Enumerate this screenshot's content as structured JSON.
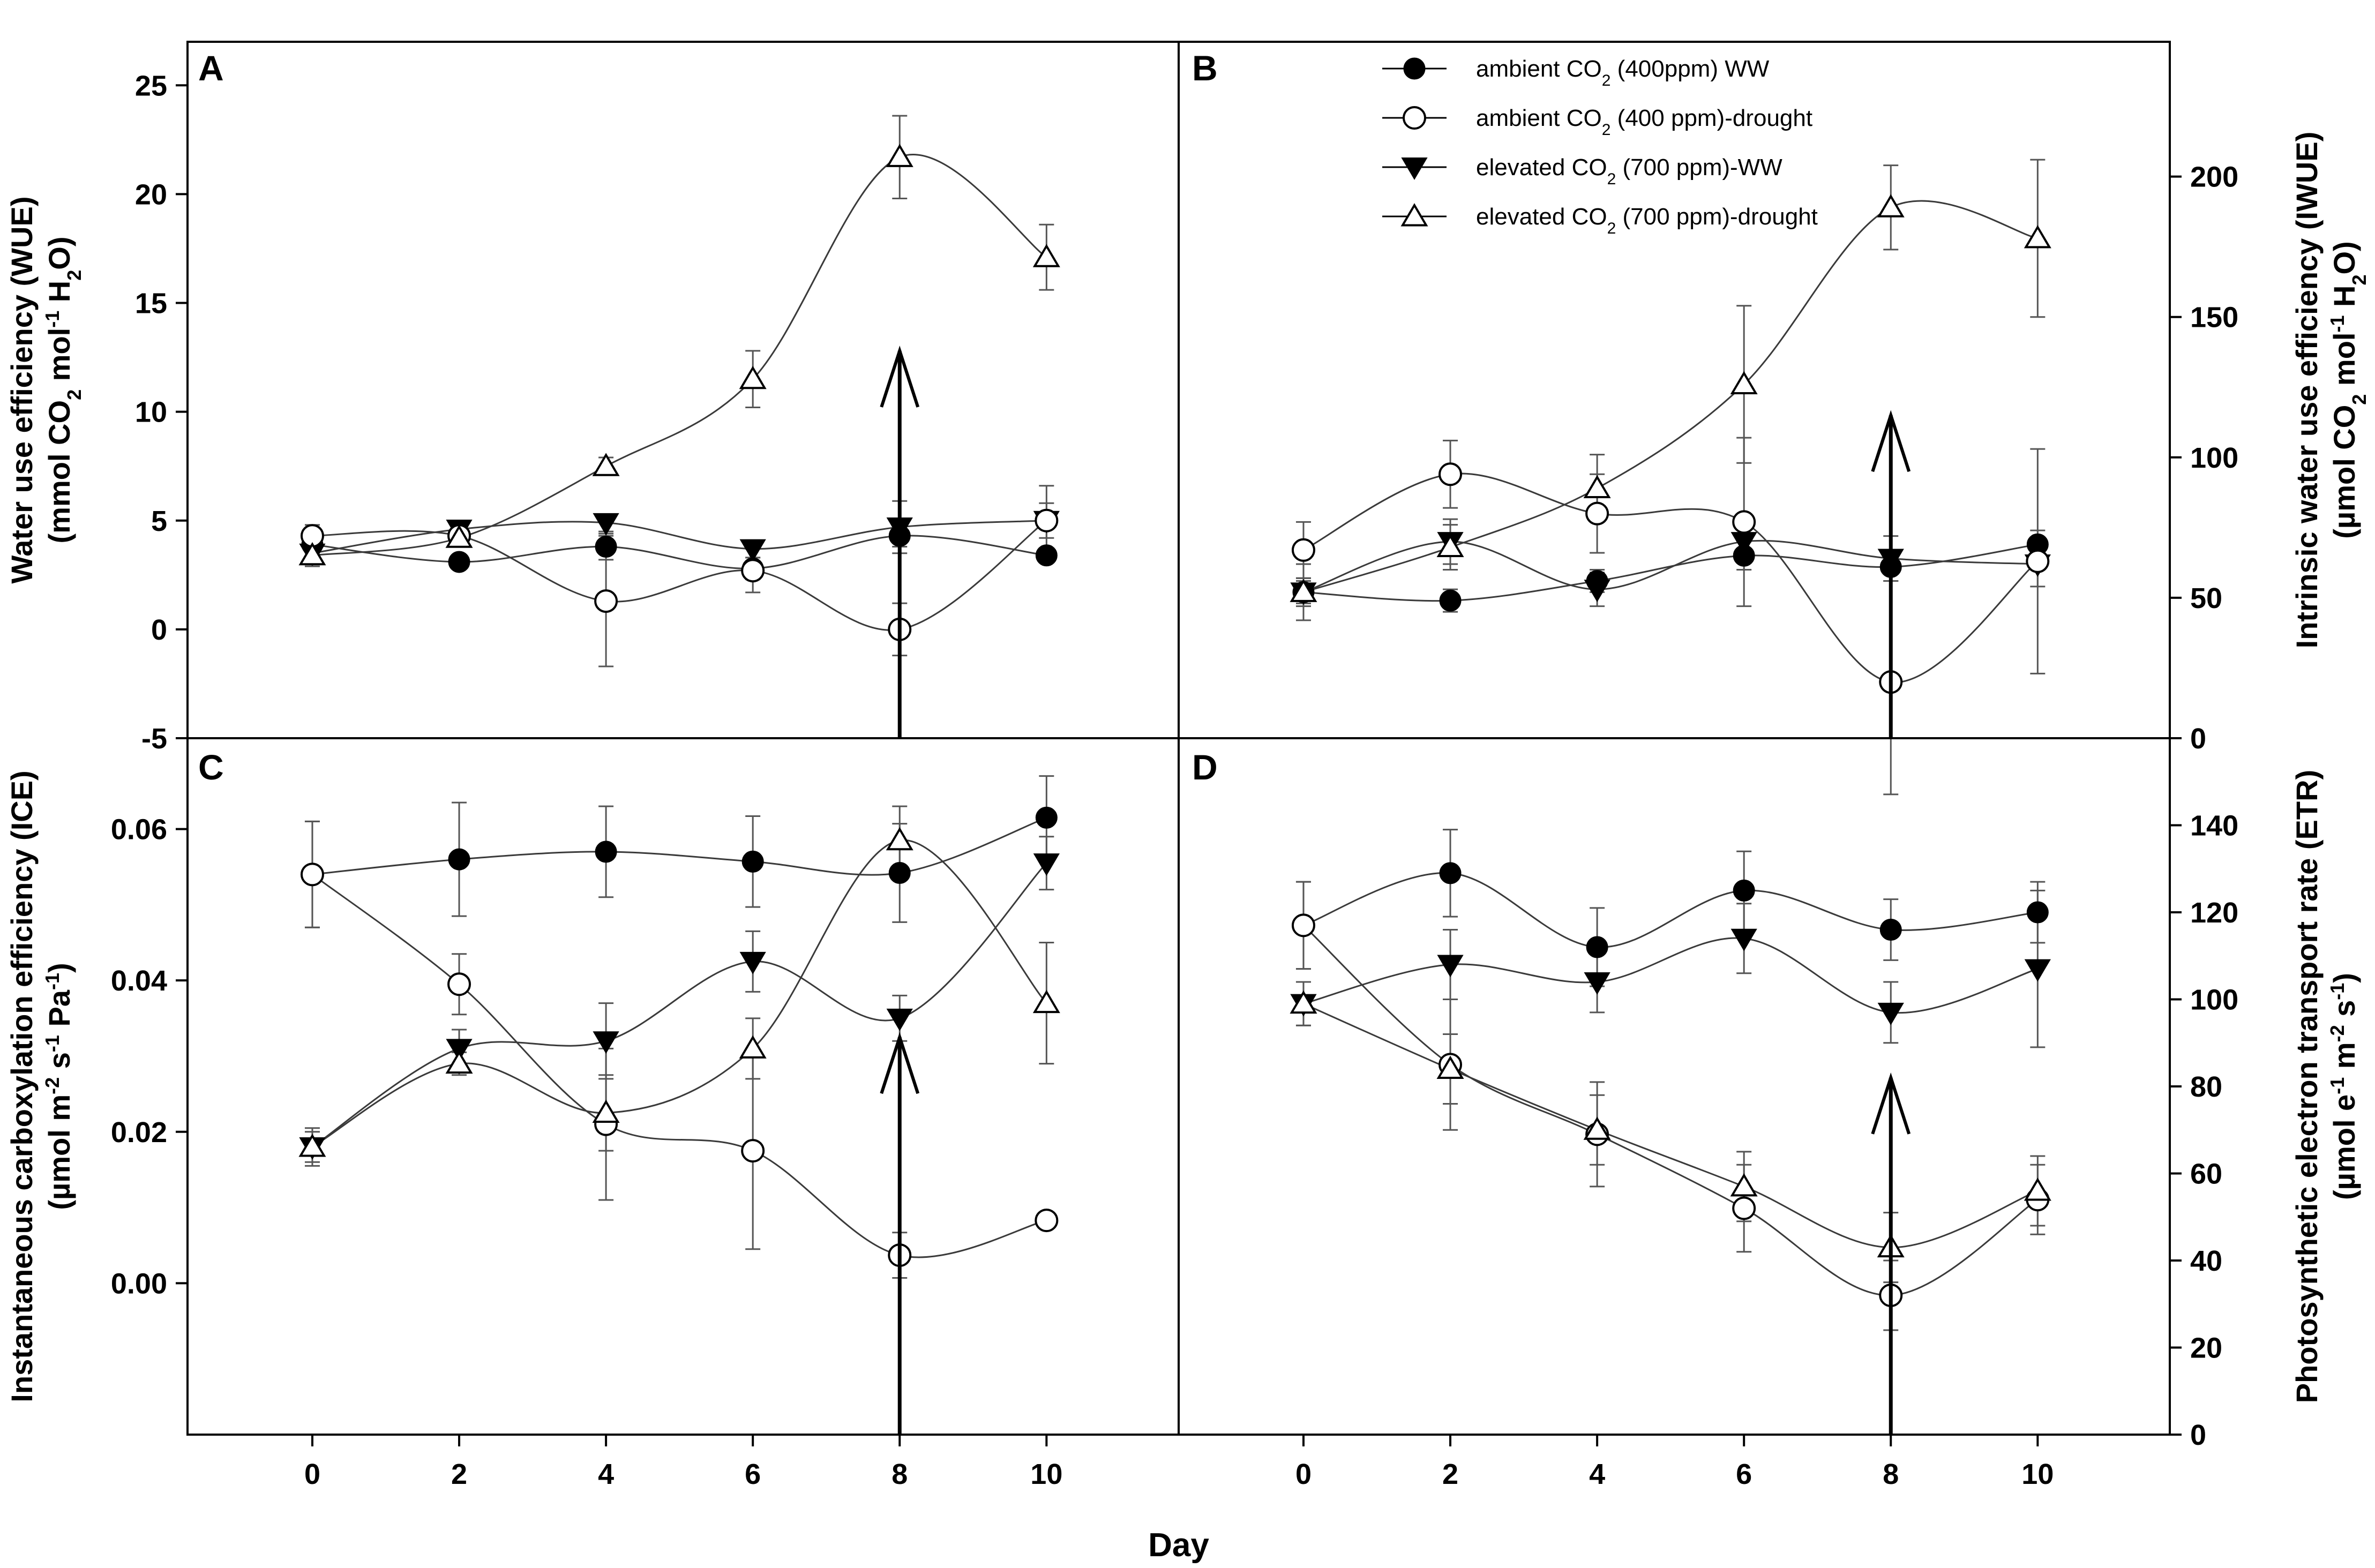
{
  "figure": {
    "x_axis_label": "Day",
    "legend": [
      {
        "marker": "filled-circle",
        "pre": "ambient CO",
        "sub": "2",
        "post": " (400ppm) WW"
      },
      {
        "marker": "open-circle",
        "pre": "ambient CO",
        "sub": "2",
        "post": " (400 ppm)-drought"
      },
      {
        "marker": "filled-triangle-down",
        "pre": "elevated CO",
        "sub": "2",
        "post": " (700 ppm)-WW"
      },
      {
        "marker": "open-triangle-up",
        "pre": "elevated CO",
        "sub": "2",
        "post": " (700 ppm)-drought"
      }
    ]
  },
  "chart_data": [
    {
      "type": "line",
      "panel": "A",
      "title": "",
      "ylabel_line1": "Water use efficiency (WUE)",
      "ylabel_line2": [
        {
          "t": "(mmol CO"
        },
        {
          "t": "2",
          "s": "sub"
        },
        {
          "t": " mol"
        },
        {
          "t": "-1",
          "s": "sup"
        },
        {
          "t": " H"
        },
        {
          "t": "2",
          "s": "sub"
        },
        {
          "t": "O)"
        }
      ],
      "yaxis_side": "left",
      "ylim": [
        -5,
        27
      ],
      "yticks": [
        -5,
        0,
        5,
        10,
        15,
        20,
        25
      ],
      "xlim": [
        -1.7,
        11.8
      ],
      "xticks": [
        0,
        2,
        4,
        6,
        8,
        10
      ],
      "x": [
        0,
        2,
        4,
        6,
        8,
        10
      ],
      "arrow": {
        "x": 8,
        "y_from": -5,
        "y_to": 12.8
      },
      "series": [
        {
          "name": "ambient CO2 (400ppm) WW",
          "marker": "filled-circle",
          "values": [
            3.9,
            3.1,
            3.8,
            2.8,
            4.3,
            3.4
          ],
          "errors": [
            0.5,
            0.3,
            0.6,
            0.5,
            0.5,
            0.3
          ]
        },
        {
          "name": "ambient CO2 (400 ppm)-drought",
          "marker": "open-circle",
          "values": [
            4.3,
            4.3,
            1.3,
            2.7,
            0.0,
            5.0
          ],
          "errors": [
            0.5,
            0.5,
            3.0,
            1.0,
            1.2,
            1.6
          ]
        },
        {
          "name": "elevated CO2 (700 ppm)-WW",
          "marker": "filled-triangle-down",
          "values": [
            3.5,
            4.6,
            4.9,
            3.7,
            4.7,
            5.0
          ],
          "errors": [
            0.5,
            0.4,
            0.4,
            0.4,
            1.2,
            0.8
          ]
        },
        {
          "name": "elevated CO2 (700 ppm)-drought",
          "marker": "open-triangle-up",
          "values": [
            3.4,
            4.2,
            7.5,
            11.5,
            21.7,
            17.1
          ],
          "errors": [
            0.5,
            0.3,
            0.4,
            1.3,
            1.9,
            1.5
          ]
        }
      ]
    },
    {
      "type": "line",
      "panel": "B",
      "title": "",
      "ylabel_line1": "Intrinsic water use efficiency (IWUE)",
      "ylabel_line2": [
        {
          "t": "(µmol CO"
        },
        {
          "t": "2",
          "s": "sub"
        },
        {
          "t": " mol"
        },
        {
          "t": "-1",
          "s": "sup"
        },
        {
          "t": " H"
        },
        {
          "t": "2",
          "s": "sub"
        },
        {
          "t": "O)"
        }
      ],
      "yaxis_side": "right",
      "ylim": [
        0,
        248
      ],
      "yticks": [
        0,
        50,
        100,
        150,
        200
      ],
      "xlim": [
        -1.7,
        11.8
      ],
      "xticks": [
        0,
        2,
        4,
        6,
        8,
        10
      ],
      "x": [
        0,
        2,
        4,
        6,
        8,
        10
      ],
      "arrow": {
        "x": 8,
        "y_from": 0,
        "y_to": 115
      },
      "series": [
        {
          "name": "ambient CO2 (400ppm) WW",
          "marker": "filled-circle",
          "values": [
            52,
            49,
            56,
            65,
            61,
            69
          ],
          "errors": [
            4,
            4,
            4,
            5,
            5,
            5
          ]
        },
        {
          "name": "ambient CO2 (400 ppm)-drought",
          "marker": "open-circle",
          "values": [
            67,
            94,
            80,
            77,
            20,
            63
          ],
          "errors": [
            10,
            12,
            14,
            30,
            40,
            40
          ]
        },
        {
          "name": "elevated CO2 (700 ppm)-WW",
          "marker": "filled-triangle-down",
          "values": [
            52,
            70,
            53,
            70,
            64,
            62
          ],
          "errors": [
            10,
            8,
            6,
            6,
            8,
            8
          ]
        },
        {
          "name": "elevated CO2 (700 ppm)-drought",
          "marker": "open-triangle-up",
          "values": [
            52,
            68,
            89,
            126,
            189,
            178
          ],
          "errors": [
            5,
            8,
            12,
            28,
            15,
            28
          ]
        }
      ]
    },
    {
      "type": "line",
      "panel": "C",
      "title": "",
      "ylabel_line1": "Instantaneous carboxylation efficiency (ICE)",
      "ylabel_line2": [
        {
          "t": "(µmol m"
        },
        {
          "t": "-2",
          "s": "sup"
        },
        {
          "t": " s"
        },
        {
          "t": "-1",
          "s": "sup"
        },
        {
          "t": " Pa"
        },
        {
          "t": "-1",
          "s": "sup"
        },
        {
          "t": ")"
        }
      ],
      "yaxis_side": "left",
      "ylim": [
        -0.02,
        0.072
      ],
      "yticks": [
        0.0,
        0.02,
        0.04,
        0.06
      ],
      "ytick_labels": [
        "0.00",
        "0.02",
        "0.04",
        "0.06"
      ],
      "xlim": [
        -1.7,
        11.8
      ],
      "xticks": [
        0,
        2,
        4,
        6,
        8,
        10
      ],
      "x": [
        0,
        2,
        4,
        6,
        8,
        10
      ],
      "arrow": {
        "x": 8,
        "y_from": -0.02,
        "y_to": 0.0325
      },
      "series": [
        {
          "name": "ambient CO2 (400ppm) WW",
          "marker": "filled-circle",
          "values": [
            0.054,
            0.056,
            0.057,
            0.0557,
            0.0542,
            0.0615
          ],
          "errors": [
            0.007,
            0.0075,
            0.006,
            0.006,
            0.0065,
            0.0055
          ]
        },
        {
          "name": "ambient CO2 (400 ppm)-drought",
          "marker": "open-circle",
          "values": [
            0.054,
            0.0395,
            0.021,
            0.0175,
            0.0037,
            0.0083
          ],
          "errors": [
            0.007,
            0.004,
            0.01,
            0.013,
            0.003,
            0.001
          ]
        },
        {
          "name": "elevated CO2 (700 ppm)-WW",
          "marker": "filled-triangle-down",
          "values": [
            0.018,
            0.031,
            0.032,
            0.0425,
            0.035,
            0.0555
          ],
          "errors": [
            0.0025,
            0.0025,
            0.005,
            0.004,
            0.003,
            0.0035
          ]
        },
        {
          "name": "elevated CO2 (700 ppm)-drought",
          "marker": "open-triangle-up",
          "values": [
            0.018,
            0.029,
            0.0225,
            0.031,
            0.0585,
            0.037
          ],
          "errors": [
            0.002,
            0.0015,
            0.005,
            0.004,
            0.0045,
            0.008
          ]
        }
      ]
    },
    {
      "type": "line",
      "panel": "D",
      "title": "",
      "ylabel_line1": "Photosynthetic electron transport rate (ETR)",
      "ylabel_line2": [
        {
          "t": "(µmol e"
        },
        {
          "t": "-1",
          "s": "sup"
        },
        {
          "t": " m"
        },
        {
          "t": "-2",
          "s": "sup"
        },
        {
          "t": " s"
        },
        {
          "t": "-1",
          "s": "sup"
        },
        {
          "t": ")"
        }
      ],
      "yaxis_side": "right",
      "ylim": [
        0,
        160
      ],
      "yticks": [
        0,
        20,
        40,
        60,
        80,
        100,
        120,
        140
      ],
      "xlim": [
        -1.7,
        11.8
      ],
      "xticks": [
        0,
        2,
        4,
        6,
        8,
        10
      ],
      "x": [
        0,
        2,
        4,
        6,
        8,
        10
      ],
      "arrow": {
        "x": 8,
        "y_from": 0,
        "y_to": 82
      },
      "series": [
        {
          "name": "ambient CO2 (400ppm) WW",
          "marker": "filled-circle",
          "values": [
            117,
            129,
            112,
            125,
            116,
            120
          ],
          "errors": [
            10,
            10,
            9,
            9,
            7,
            7
          ]
        },
        {
          "name": "ambient CO2 (400 ppm)-drought",
          "marker": "open-circle",
          "values": [
            117,
            85,
            69,
            52,
            32,
            54
          ],
          "errors": [
            10,
            15,
            12,
            10,
            8,
            8
          ]
        },
        {
          "name": "elevated CO2 (700 ppm)-WW",
          "marker": "filled-triangle-down",
          "values": [
            99,
            108,
            104,
            114,
            97,
            107
          ],
          "errors": [
            5,
            8,
            7,
            8,
            7,
            18
          ]
        },
        {
          "name": "elevated CO2 (700 ppm)-drought",
          "marker": "open-triangle-up",
          "values": [
            99,
            84,
            70,
            57,
            43,
            56
          ],
          "errors": [
            5,
            8,
            8,
            8,
            8,
            8
          ]
        }
      ]
    }
  ]
}
